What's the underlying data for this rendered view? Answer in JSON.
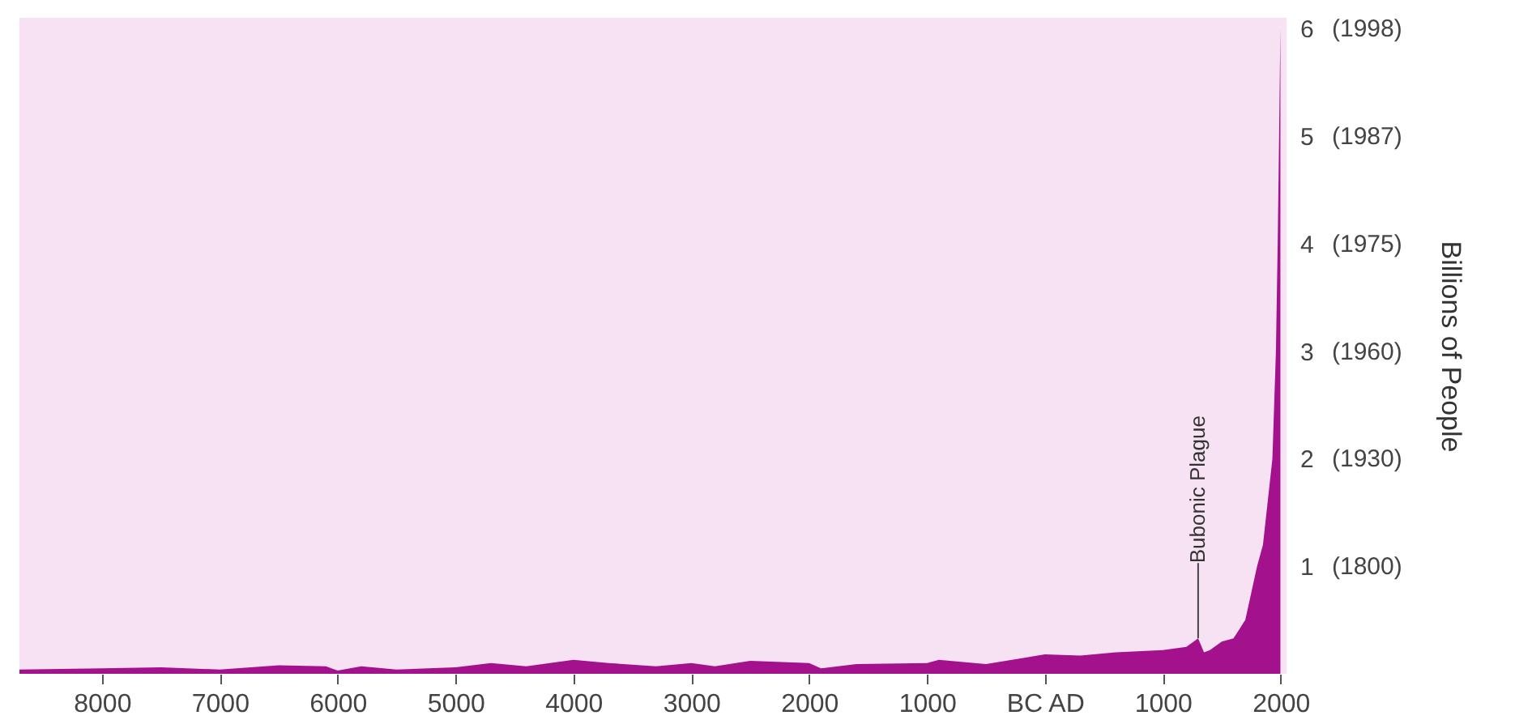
{
  "chart_data": {
    "type": "area",
    "ylabel": "Billions of People",
    "x": [
      -8700,
      -8000,
      -7500,
      -7000,
      -6500,
      -6100,
      -6000,
      -5800,
      -5500,
      -5000,
      -4700,
      -4400,
      -4000,
      -3700,
      -3300,
      -3000,
      -2800,
      -2500,
      -2000,
      -1900,
      -1600,
      -1000,
      -900,
      -500,
      0,
      300,
      600,
      1000,
      1200,
      1300,
      1350,
      1400,
      1500,
      1600,
      1700,
      1800,
      1850,
      1930,
      1960,
      1975,
      1987,
      1998
    ],
    "series": [
      {
        "color": "#a3128c",
        "values": [
          0.04,
          0.05,
          0.06,
          0.04,
          0.08,
          0.07,
          0.03,
          0.07,
          0.04,
          0.06,
          0.1,
          0.07,
          0.13,
          0.1,
          0.07,
          0.1,
          0.07,
          0.12,
          0.1,
          0.05,
          0.09,
          0.1,
          0.13,
          0.09,
          0.18,
          0.17,
          0.2,
          0.22,
          0.25,
          0.33,
          0.2,
          0.22,
          0.3,
          0.33,
          0.5,
          1,
          1.2,
          2,
          3,
          4,
          5,
          6
        ]
      }
    ],
    "xlim": [
      -8700,
      2050
    ],
    "xticks": [
      {
        "value": -8000,
        "label": "8000"
      },
      {
        "value": -7000,
        "label": "7000"
      },
      {
        "value": -6000,
        "label": "6000"
      },
      {
        "value": -5000,
        "label": "5000"
      },
      {
        "value": -4000,
        "label": "4000"
      },
      {
        "value": -3000,
        "label": "3000"
      },
      {
        "value": -2000,
        "label": "2000"
      },
      {
        "value": -1000,
        "label": "1000"
      },
      {
        "value": 0,
        "label": "BC AD"
      },
      {
        "value": 1000,
        "label": "1000"
      },
      {
        "value": 2000,
        "label": "2000"
      }
    ],
    "ylim": [
      0,
      6.1
    ],
    "yticks": [
      1,
      2,
      3,
      4,
      5,
      6
    ],
    "annotations": [
      {
        "text": "Bubonic Plague",
        "x": 1300,
        "y": 0.33
      },
      "(1800)",
      "(1930)",
      "(1960)",
      "(1975)",
      "(1987)",
      "(1998)"
    ]
  }
}
